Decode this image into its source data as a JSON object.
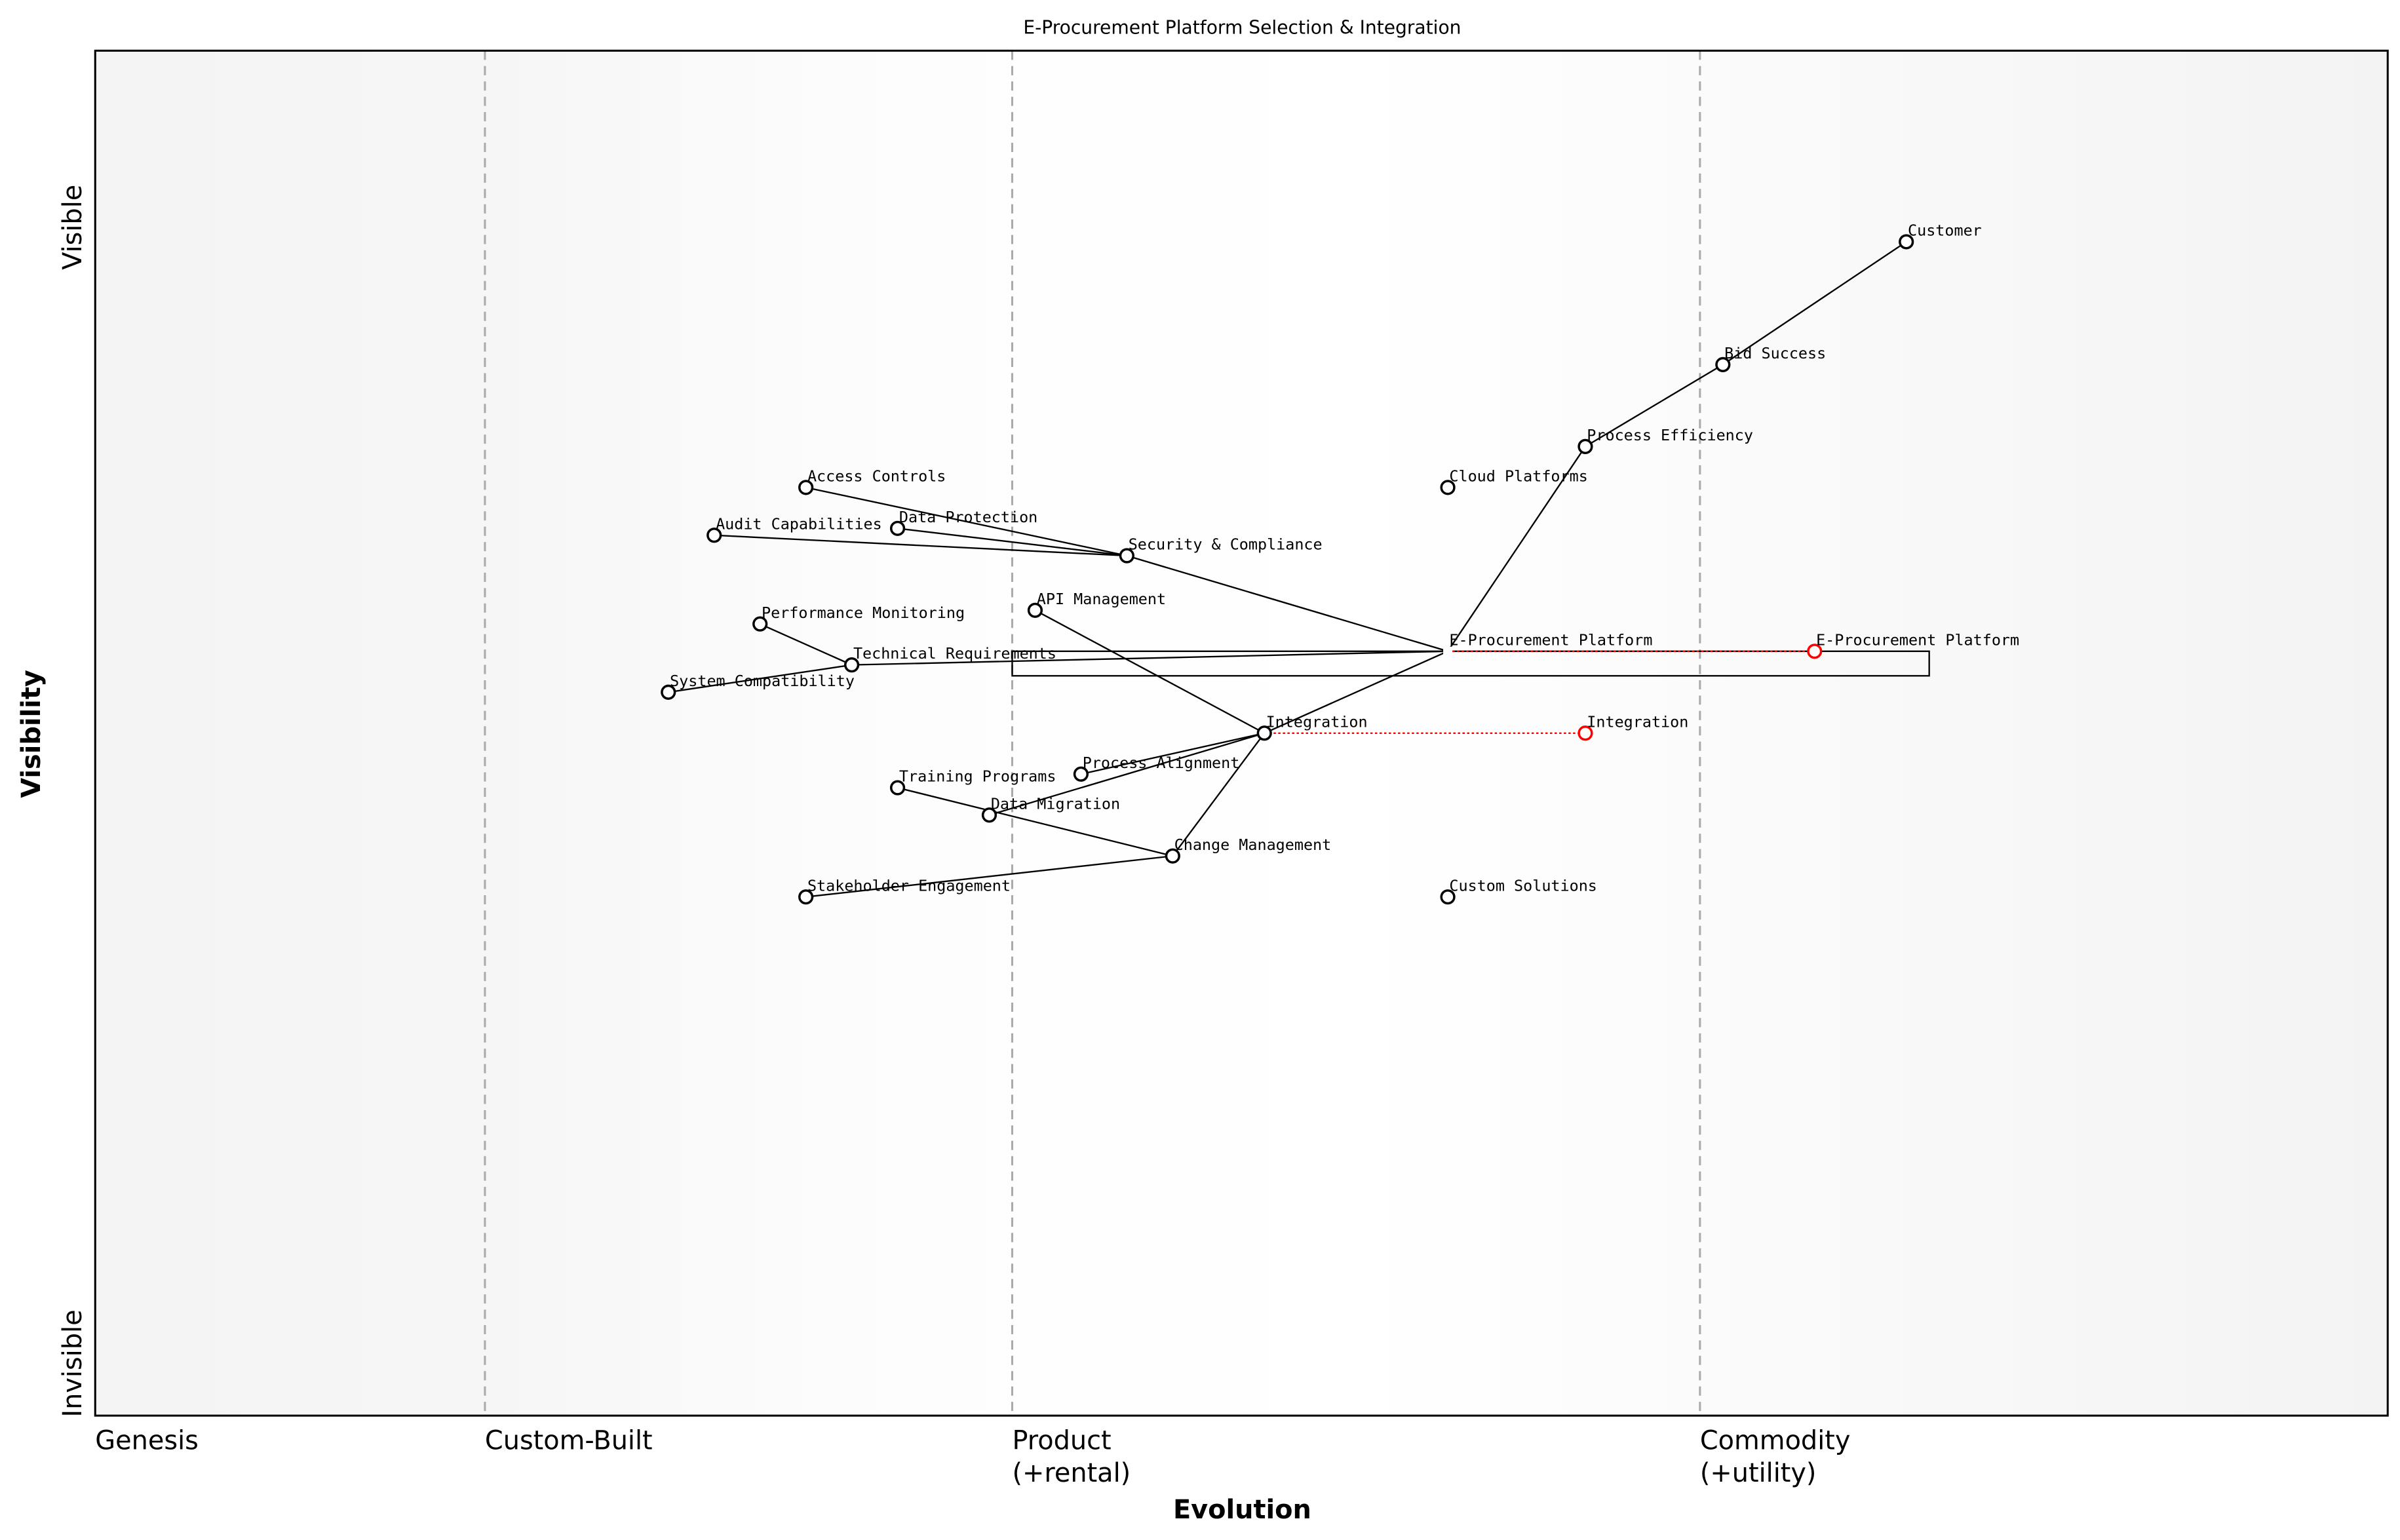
{
  "title": "E-Procurement Platform Selection & Integration",
  "x_axis": {
    "title": "Evolution",
    "stages": [
      {
        "label": "Genesis",
        "line2": "",
        "at": 0.0
      },
      {
        "label": "Custom-Built",
        "line2": "",
        "at": 0.17
      },
      {
        "label": "Product",
        "line2": "(+rental)",
        "at": 0.4
      },
      {
        "label": "Commodity",
        "line2": "(+utility)",
        "at": 0.7
      }
    ]
  },
  "y_axis": {
    "title": "Visibility",
    "top": "Visible",
    "bottom": "Invisible"
  },
  "colors": {
    "node": "#000000",
    "evolved": "#ff0000",
    "stage_line": "#aaaaaa"
  },
  "components": [
    {
      "id": "customer",
      "name": "Customer",
      "evolution": 0.79,
      "visibility": 0.86
    },
    {
      "id": "bid",
      "name": "Bid Success",
      "evolution": 0.71,
      "visibility": 0.77
    },
    {
      "id": "proc_eff",
      "name": "Process Efficiency",
      "evolution": 0.65,
      "visibility": 0.71
    },
    {
      "id": "cloud",
      "name": "Cloud Platforms",
      "evolution": 0.59,
      "visibility": 0.68
    },
    {
      "id": "access",
      "name": "Access Controls",
      "evolution": 0.31,
      "visibility": 0.68
    },
    {
      "id": "dataprot",
      "name": "Data Protection",
      "evolution": 0.35,
      "visibility": 0.65
    },
    {
      "id": "audit",
      "name": "Audit Capabilities",
      "evolution": 0.27,
      "visibility": 0.645
    },
    {
      "id": "security",
      "name": "Security & Compliance",
      "evolution": 0.45,
      "visibility": 0.63
    },
    {
      "id": "api",
      "name": "API Management",
      "evolution": 0.41,
      "visibility": 0.59
    },
    {
      "id": "perf",
      "name": "Performance Monitoring",
      "evolution": 0.29,
      "visibility": 0.58
    },
    {
      "id": "eproc",
      "name": "E-Procurement Platform",
      "evolution": 0.59,
      "visibility": 0.56,
      "hidden_marker": true
    },
    {
      "id": "techreq",
      "name": "Technical Requirements",
      "evolution": 0.33,
      "visibility": 0.55
    },
    {
      "id": "syscompat",
      "name": "System Compatibility",
      "evolution": 0.25,
      "visibility": 0.53
    },
    {
      "id": "integration",
      "name": "Integration",
      "evolution": 0.51,
      "visibility": 0.5
    },
    {
      "id": "procalign",
      "name": "Process Alignment",
      "evolution": 0.43,
      "visibility": 0.47
    },
    {
      "id": "training",
      "name": "Training Programs",
      "evolution": 0.35,
      "visibility": 0.46
    },
    {
      "id": "datamig",
      "name": "Data Migration",
      "evolution": 0.39,
      "visibility": 0.44
    },
    {
      "id": "change",
      "name": "Change Management",
      "evolution": 0.47,
      "visibility": 0.41
    },
    {
      "id": "stake",
      "name": "Stakeholder Engagement",
      "evolution": 0.31,
      "visibility": 0.38
    },
    {
      "id": "custom",
      "name": "Custom Solutions",
      "evolution": 0.59,
      "visibility": 0.38
    }
  ],
  "evolved": [
    {
      "from": "eproc",
      "name": "E-Procurement Platform",
      "evolution": 0.75,
      "visibility": 0.56
    },
    {
      "from": "integration",
      "name": "Integration",
      "evolution": 0.65,
      "visibility": 0.5
    }
  ],
  "pipelines": [
    {
      "component": "eproc",
      "evolution_start": 0.4,
      "evolution_end": 0.8
    }
  ],
  "links": [
    [
      "customer",
      "bid"
    ],
    [
      "bid",
      "proc_eff"
    ],
    [
      "proc_eff",
      "eproc"
    ],
    [
      "eproc",
      "security"
    ],
    [
      "eproc",
      "techreq"
    ],
    [
      "eproc",
      "integration"
    ],
    [
      "security",
      "access"
    ],
    [
      "security",
      "dataprot"
    ],
    [
      "security",
      "audit"
    ],
    [
      "techreq",
      "perf"
    ],
    [
      "techreq",
      "syscompat"
    ],
    [
      "integration",
      "api"
    ],
    [
      "integration",
      "procalign"
    ],
    [
      "integration",
      "datamig"
    ],
    [
      "integration",
      "change"
    ],
    [
      "change",
      "training"
    ],
    [
      "change",
      "stake"
    ]
  ]
}
